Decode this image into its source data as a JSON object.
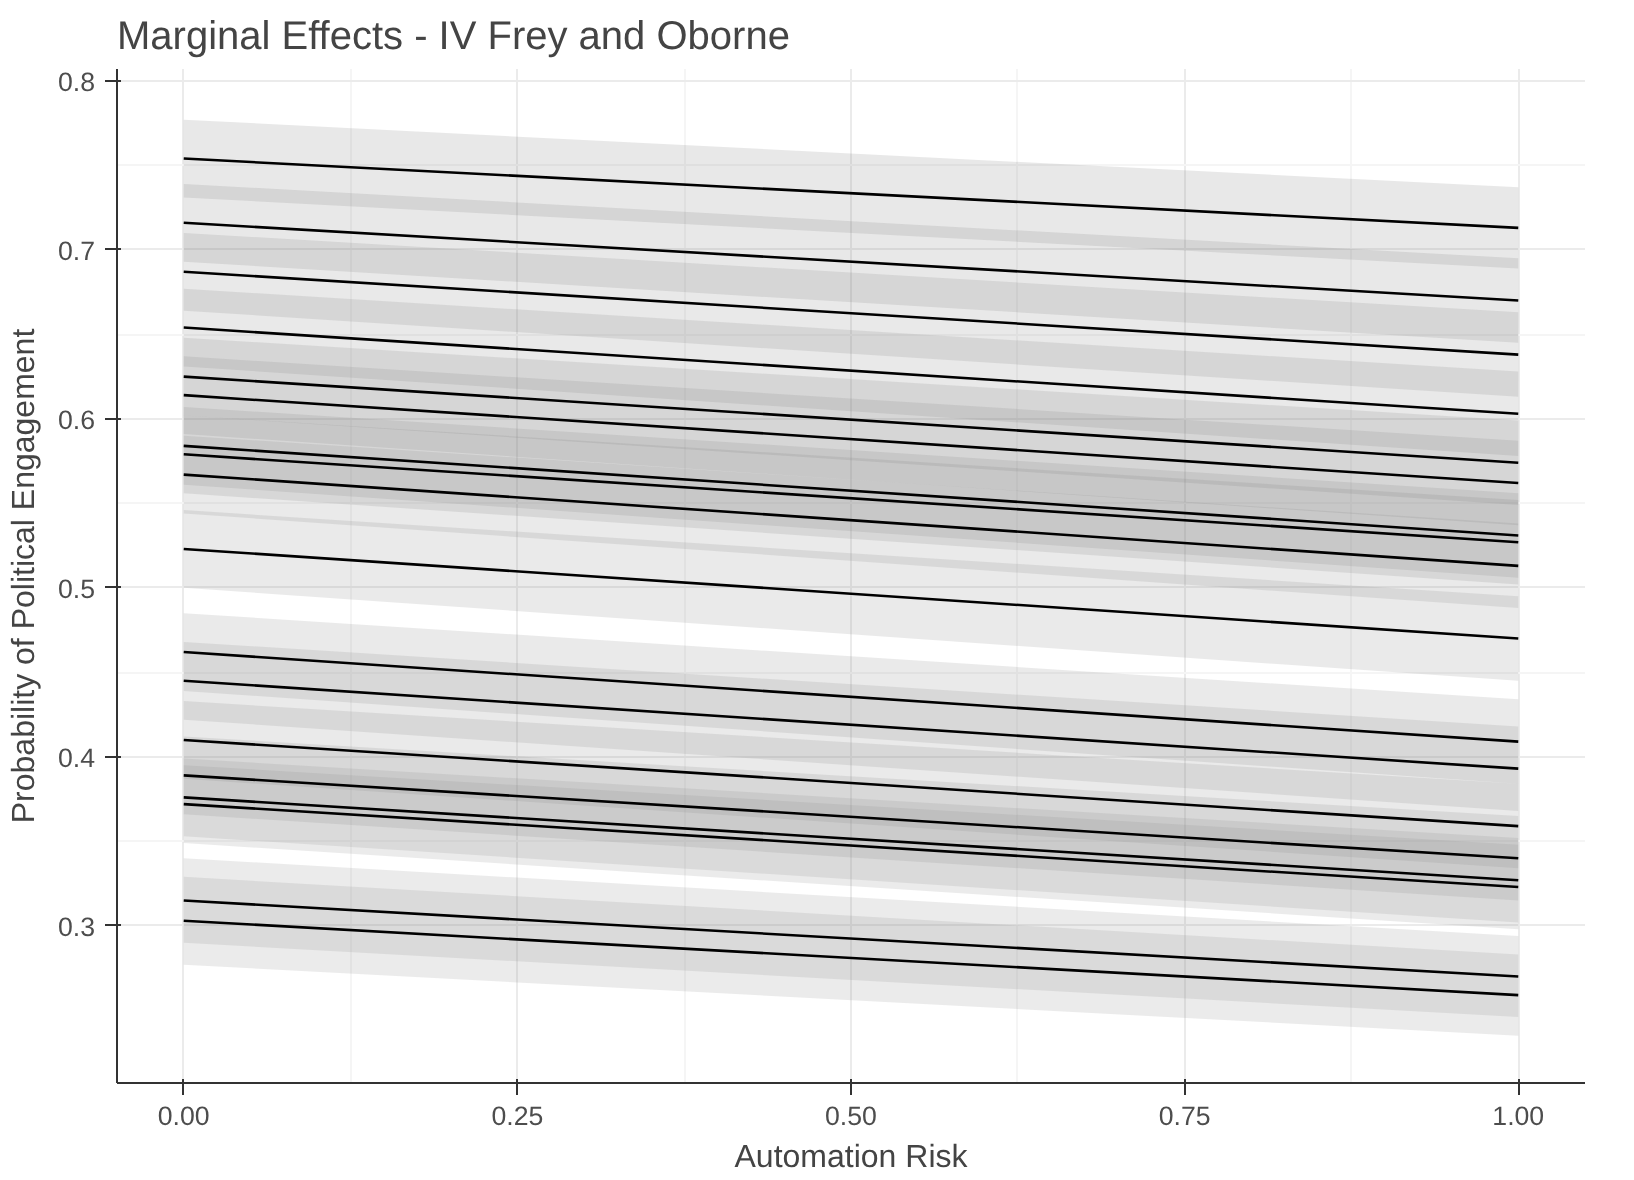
{
  "chart_data": {
    "type": "line",
    "title": "Marginal Effects - IV Frey and Oborne",
    "xlabel": "Automation Risk",
    "ylabel": "Probability of Political Engagement",
    "x": [
      0,
      1
    ],
    "xlim": [
      -0.05,
      1.05
    ],
    "xticks": [
      {
        "value": 0,
        "label": "0.00"
      },
      {
        "value": 0.25,
        "label": "0.25"
      },
      {
        "value": 0.5,
        "label": "0.50"
      },
      {
        "value": 0.75,
        "label": "0.75"
      },
      {
        "value": 1,
        "label": "1.00"
      }
    ],
    "ylim": [
      0.207,
      0.807
    ],
    "yticks": [
      0.3,
      0.4,
      0.5,
      0.6,
      0.7,
      0.8
    ],
    "grid": true,
    "series": [
      {
        "color": "#000000",
        "values": [
          0.754,
          0.713
        ],
        "lower": [
          0.731,
          0.689
        ],
        "upper": [
          0.777,
          0.737
        ]
      },
      {
        "color": "#000000",
        "values": [
          0.716,
          0.67
        ],
        "lower": [
          0.693,
          0.645
        ],
        "upper": [
          0.739,
          0.695
        ]
      },
      {
        "color": "#000000",
        "values": [
          0.687,
          0.638
        ],
        "lower": [
          0.664,
          0.613
        ],
        "upper": [
          0.71,
          0.663
        ]
      },
      {
        "color": "#000000",
        "values": [
          0.654,
          0.603
        ],
        "lower": [
          0.631,
          0.578
        ],
        "upper": [
          0.677,
          0.628
        ]
      },
      {
        "color": "#000000",
        "values": [
          0.625,
          0.574
        ],
        "lower": [
          0.602,
          0.549
        ],
        "upper": [
          0.648,
          0.599
        ]
      },
      {
        "color": "#000000",
        "values": [
          0.614,
          0.562
        ],
        "lower": [
          0.591,
          0.537
        ],
        "upper": [
          0.637,
          0.587
        ]
      },
      {
        "color": "#000000",
        "values": [
          0.584,
          0.531
        ],
        "lower": [
          0.561,
          0.506
        ],
        "upper": [
          0.607,
          0.556
        ]
      },
      {
        "color": "#000000",
        "values": [
          0.579,
          0.527
        ],
        "lower": [
          0.556,
          0.502
        ],
        "upper": [
          0.602,
          0.552
        ]
      },
      {
        "color": "#000000",
        "values": [
          0.567,
          0.513
        ],
        "lower": [
          0.544,
          0.488
        ],
        "upper": [
          0.59,
          0.538
        ]
      },
      {
        "color": "#000000",
        "values": [
          0.523,
          0.47
        ],
        "lower": [
          0.5,
          0.445
        ],
        "upper": [
          0.546,
          0.495
        ]
      },
      {
        "color": "#000000",
        "values": [
          0.462,
          0.409
        ],
        "lower": [
          0.439,
          0.384
        ],
        "upper": [
          0.485,
          0.434
        ]
      },
      {
        "color": "#000000",
        "values": [
          0.445,
          0.393
        ],
        "lower": [
          0.422,
          0.368
        ],
        "upper": [
          0.468,
          0.418
        ]
      },
      {
        "color": "#000000",
        "values": [
          0.41,
          0.359
        ],
        "lower": [
          0.387,
          0.334
        ],
        "upper": [
          0.433,
          0.384
        ]
      },
      {
        "color": "#000000",
        "values": [
          0.389,
          0.34
        ],
        "lower": [
          0.366,
          0.315
        ],
        "upper": [
          0.412,
          0.365
        ]
      },
      {
        "color": "#000000",
        "values": [
          0.376,
          0.327
        ],
        "lower": [
          0.353,
          0.302
        ],
        "upper": [
          0.399,
          0.352
        ]
      },
      {
        "color": "#000000",
        "values": [
          0.372,
          0.323
        ],
        "lower": [
          0.349,
          0.298
        ],
        "upper": [
          0.395,
          0.348
        ]
      },
      {
        "color": "#000000",
        "values": [
          0.315,
          0.27
        ],
        "lower": [
          0.29,
          0.246
        ],
        "upper": [
          0.34,
          0.294
        ]
      },
      {
        "color": "#000000",
        "values": [
          0.303,
          0.259
        ],
        "lower": [
          0.277,
          0.235
        ],
        "upper": [
          0.329,
          0.283
        ]
      }
    ]
  }
}
